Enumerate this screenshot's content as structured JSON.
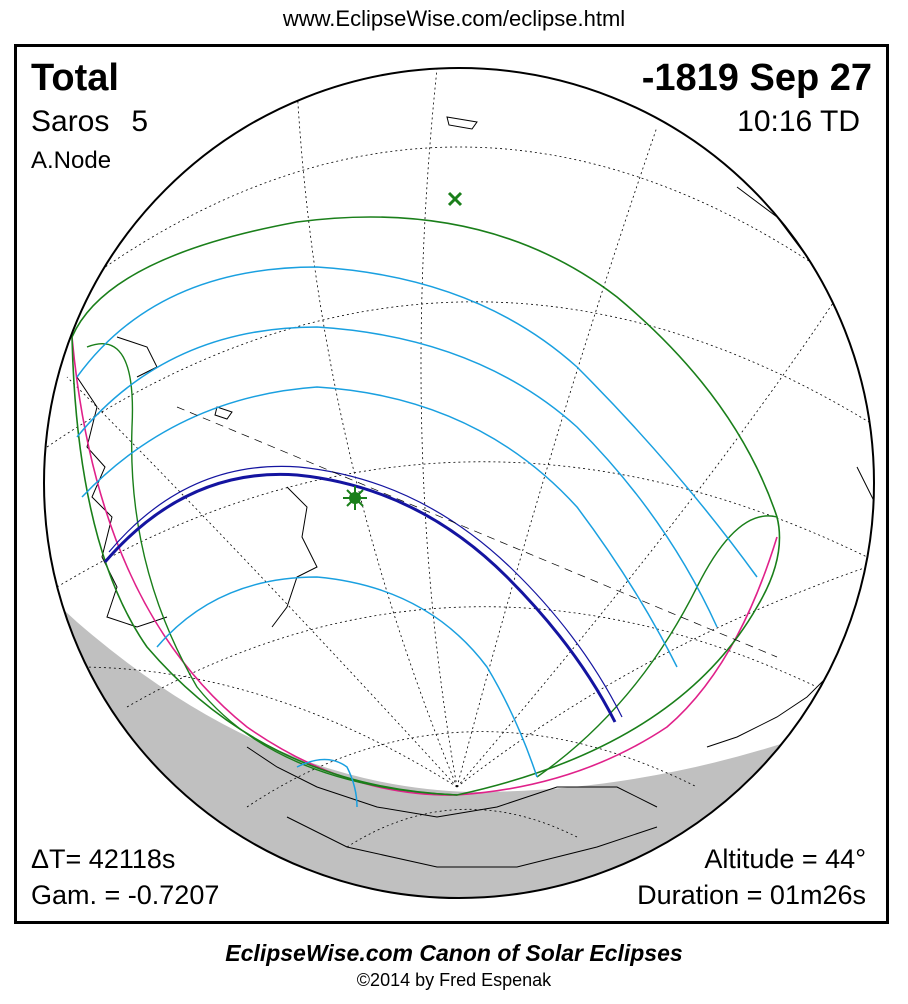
{
  "url": "www.EclipseWise.com/eclipse.html",
  "eclipse": {
    "type": "Total",
    "date": "-1819 Sep 27",
    "saros_label": "Saros",
    "saros_number": "5",
    "time": "10:16 TD",
    "node": "A.Node",
    "delta_t": "ΔT=  42118s",
    "gamma": "Gam. = -0.7207",
    "altitude": "Altitude = 44°",
    "duration": "Duration = 01m26s"
  },
  "colors": {
    "penumbral_limit": "#1a7f1a",
    "rise_set_limit": "#e0218a",
    "hour_contours": "#1aa0e0",
    "central_path": "#1414a0",
    "night_shade": "#c0c0c0"
  },
  "markers": {
    "greatest_eclipse": "star-marker",
    "subsolar_point": "x-marker"
  },
  "footer": {
    "title": "EclipseWise.com Canon of Solar Eclipses",
    "copyright": "©2014 by Fred Espenak"
  }
}
